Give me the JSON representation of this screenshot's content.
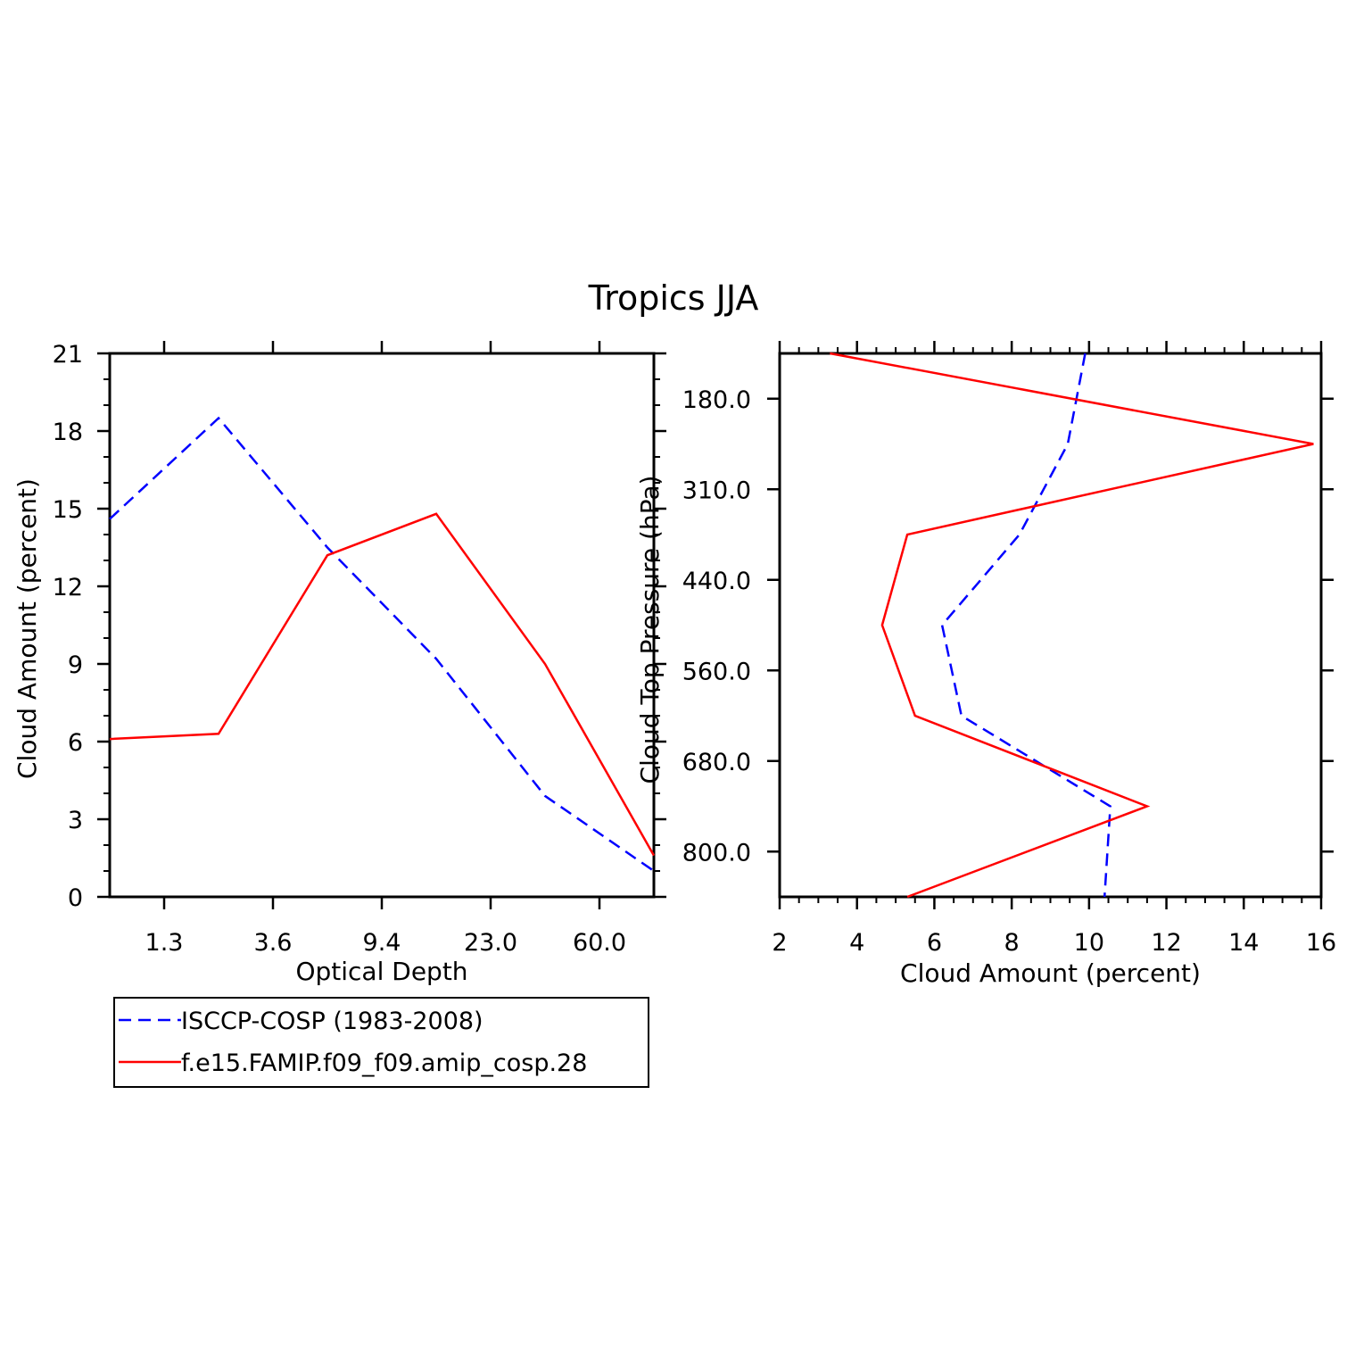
{
  "title": "Tropics JJA",
  "colors": {
    "obs": "#0000ff",
    "model": "#ff0000",
    "axis": "#000000"
  },
  "chart_data": [
    {
      "type": "line",
      "id": "left",
      "xlabel": "Optical Depth",
      "ylabel": "Cloud Amount (percent)",
      "x_tick_labels": [
        "1.3",
        "3.6",
        "9.4",
        "23.0",
        "60.0"
      ],
      "x_tick_positions": [
        0.5,
        1.5,
        2.5,
        3.5,
        4.5
      ],
      "y_ticks": [
        0,
        3,
        6,
        9,
        12,
        15,
        18,
        21
      ],
      "xlim": [
        0,
        5
      ],
      "ylim": [
        0,
        21
      ],
      "x": [
        0,
        1,
        2,
        3,
        4,
        5
      ],
      "series": [
        {
          "name": "ISCCP-COSP (1983-2008)",
          "style": "dashed",
          "color": "obs",
          "values": [
            14.6,
            18.5,
            13.5,
            9.2,
            3.9,
            1.0
          ]
        },
        {
          "name": "f.e15.FAMIP.f09_f09.amip_cosp.28",
          "style": "solid",
          "color": "model",
          "values": [
            6.1,
            6.3,
            13.2,
            14.8,
            9.0,
            1.6
          ]
        }
      ]
    },
    {
      "type": "line",
      "id": "right",
      "xlabel": "Cloud Amount (percent)",
      "ylabel": "Cloud Top Pressure (hPa)",
      "x_ticks": [
        2,
        4,
        6,
        8,
        10,
        12,
        14,
        16
      ],
      "xlim": [
        2,
        16
      ],
      "y_tick_labels": [
        "180.0",
        "310.0",
        "440.0",
        "560.0",
        "680.0",
        "800.0"
      ],
      "y_tick_positions": [
        1,
        3,
        5,
        7,
        9,
        11
      ],
      "ylim": [
        0,
        12
      ],
      "y": [
        0,
        2,
        4,
        6,
        8,
        10,
        12
      ],
      "series": [
        {
          "name": "ISCCP-COSP (1983-2008)",
          "style": "dashed",
          "color": "obs",
          "values": [
            9.9,
            9.45,
            8.2,
            6.2,
            6.7,
            10.55,
            10.4
          ]
        },
        {
          "name": "f.e15.FAMIP.f09_f09.amip_cosp.28",
          "style": "solid",
          "color": "model",
          "values": [
            3.3,
            15.8,
            5.3,
            4.65,
            5.5,
            11.5,
            5.3
          ]
        }
      ]
    }
  ],
  "legend": [
    {
      "label": "ISCCP-COSP (1983-2008)",
      "style": "dashed",
      "color": "obs"
    },
    {
      "label": "f.e15.FAMIP.f09_f09.amip_cosp.28",
      "style": "solid",
      "color": "model"
    }
  ]
}
